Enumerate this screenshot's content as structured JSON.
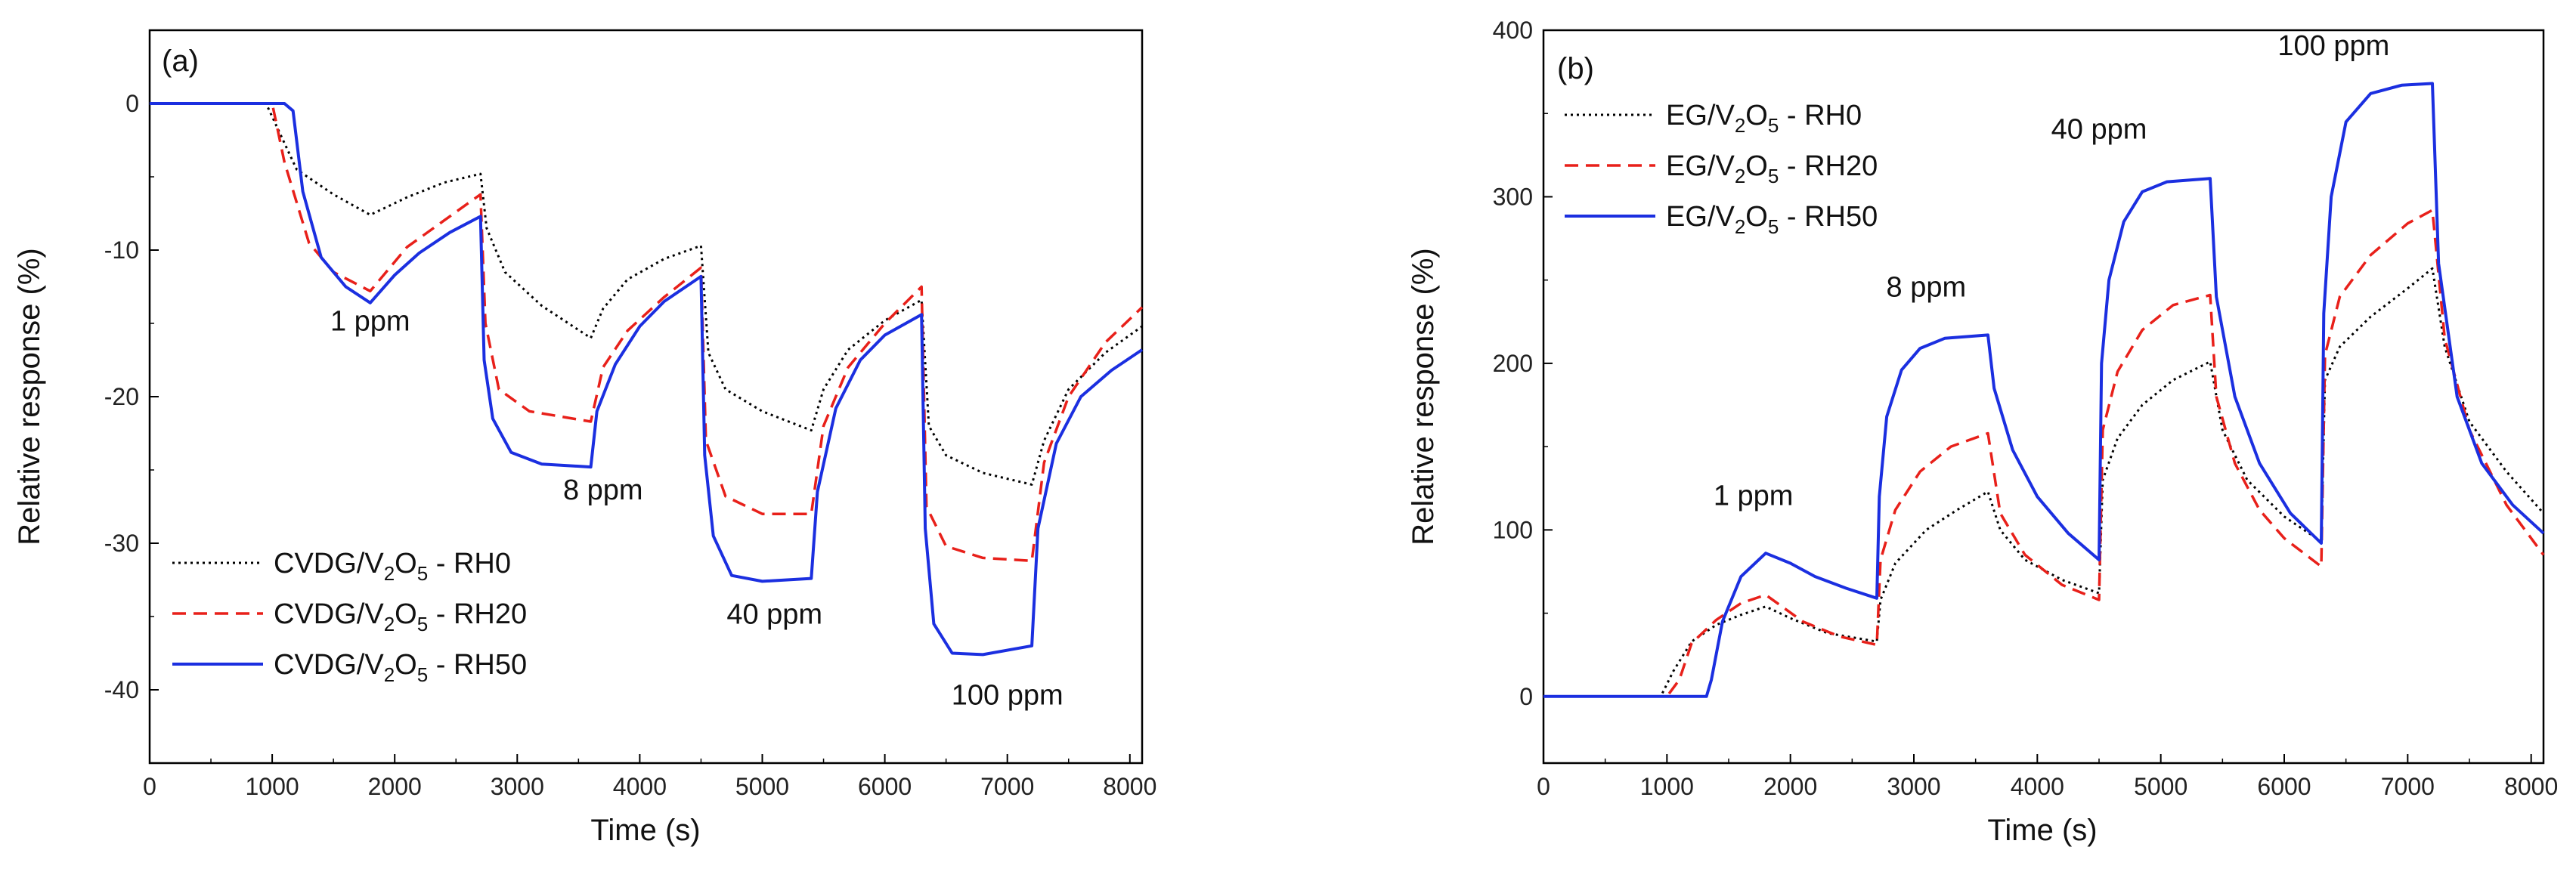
{
  "chart_data": [
    {
      "type": "line",
      "panel_label": "(a)",
      "xlabel": "Time (s)",
      "ylabel": "Relative response (%)",
      "xlim": [
        0,
        8100
      ],
      "ylim": [
        -45,
        5
      ],
      "xticks": [
        0,
        1000,
        2000,
        3000,
        4000,
        5000,
        6000,
        7000,
        8000
      ],
      "yticks": [
        0,
        -10,
        -20,
        -30,
        -40
      ],
      "legend_position": "bottom-left",
      "annotations": [
        {
          "text": "1 ppm",
          "x": 1800,
          "y": -15.5
        },
        {
          "text": "8 ppm",
          "x": 3700,
          "y": -27.0
        },
        {
          "text": "40 ppm",
          "x": 5100,
          "y": -35.5
        },
        {
          "text": "100 ppm",
          "x": 7000,
          "y": -41.0
        }
      ],
      "series": [
        {
          "name": "CVDG/V2O5 - RH0",
          "legend": [
            "CVDG/V",
            "2",
            "O",
            "5",
            " - RH0"
          ],
          "style": "dotted",
          "color": "#000000",
          "x": [
            0,
            950,
            1200,
            1500,
            1800,
            2100,
            2400,
            2700,
            2750,
            2900,
            3200,
            3600,
            3700,
            3900,
            4200,
            4500,
            4560,
            4700,
            5000,
            5400,
            5500,
            5700,
            6000,
            6300,
            6360,
            6500,
            6800,
            7200,
            7300,
            7500,
            7800,
            8100
          ],
          "y": [
            0,
            0,
            -4.5,
            -6.2,
            -7.6,
            -6.4,
            -5.4,
            -4.8,
            -8.5,
            -11.5,
            -13.8,
            -16.0,
            -14.0,
            -12.0,
            -10.6,
            -9.7,
            -17.0,
            -19.5,
            -21.0,
            -22.3,
            -19.5,
            -16.8,
            -14.8,
            -13.4,
            -22.0,
            -24.0,
            -25.2,
            -26.0,
            -23.0,
            -19.5,
            -17.0,
            -15.2
          ]
        },
        {
          "name": "CVDG/V2O5 - RH20",
          "legend": [
            "CVDG/V",
            "2",
            "O",
            "5",
            " - RH20"
          ],
          "style": "dashed",
          "color": "#e8201a",
          "x": [
            0,
            1000,
            1100,
            1300,
            1500,
            1800,
            2100,
            2400,
            2700,
            2740,
            2850,
            3100,
            3600,
            3700,
            3900,
            4200,
            4500,
            4540,
            4700,
            5000,
            5400,
            5500,
            5700,
            6000,
            6300,
            6340,
            6500,
            6800,
            7200,
            7300,
            7500,
            7800,
            8100
          ],
          "y": [
            0,
            0,
            -4.0,
            -9.5,
            -11.5,
            -12.8,
            -9.8,
            -8.0,
            -6.2,
            -15.0,
            -19.5,
            -21.0,
            -21.7,
            -18.0,
            -15.5,
            -13.2,
            -11.2,
            -23.0,
            -26.8,
            -28.0,
            -28.0,
            -22.0,
            -18.0,
            -15.0,
            -12.5,
            -27.5,
            -30.2,
            -31.0,
            -31.2,
            -24.5,
            -20.0,
            -16.3,
            -13.9
          ]
        },
        {
          "name": "CVDG/V2O5 - RH50",
          "legend": [
            "CVDG/V",
            "2",
            "O",
            "5",
            " - RH50"
          ],
          "style": "solid",
          "color": "#1b2fe0",
          "x": [
            0,
            1100,
            1170,
            1250,
            1400,
            1600,
            1800,
            2000,
            2200,
            2450,
            2700,
            2730,
            2800,
            2950,
            3200,
            3600,
            3650,
            3800,
            4000,
            4200,
            4500,
            4530,
            4600,
            4750,
            5000,
            5400,
            5450,
            5600,
            5800,
            6000,
            6300,
            6330,
            6400,
            6550,
            6800,
            7200,
            7250,
            7400,
            7600,
            7850,
            8100
          ],
          "y": [
            0,
            0,
            -0.5,
            -6.0,
            -10.5,
            -12.5,
            -13.6,
            -11.7,
            -10.2,
            -8.8,
            -7.7,
            -17.5,
            -21.5,
            -23.8,
            -24.6,
            -24.8,
            -21.0,
            -17.8,
            -15.2,
            -13.5,
            -11.8,
            -24.0,
            -29.5,
            -32.2,
            -32.6,
            -32.4,
            -26.5,
            -20.8,
            -17.5,
            -15.8,
            -14.4,
            -29.0,
            -35.5,
            -37.5,
            -37.6,
            -37.0,
            -29.0,
            -23.2,
            -20.0,
            -18.2,
            -16.8
          ]
        }
      ]
    },
    {
      "type": "line",
      "panel_label": "(b)",
      "xlabel": "Time (s)",
      "ylabel": "Relative response (%)",
      "xlim": [
        0,
        8100
      ],
      "ylim": [
        -40,
        400
      ],
      "xticks": [
        0,
        1000,
        2000,
        3000,
        4000,
        5000,
        6000,
        7000,
        8000
      ],
      "yticks": [
        0,
        100,
        200,
        300,
        400
      ],
      "legend_position": "top-left",
      "annotations": [
        {
          "text": "1 ppm",
          "x": 1700,
          "y": 115
        },
        {
          "text": "8 ppm",
          "x": 3100,
          "y": 240
        },
        {
          "text": "40 ppm",
          "x": 4500,
          "y": 335
        },
        {
          "text": "100 ppm",
          "x": 6400,
          "y": 385
        }
      ],
      "series": [
        {
          "name": "EG/V2O5 - RH0",
          "legend": [
            "EG/V",
            "2",
            "O",
            "5",
            " - RH0"
          ],
          "style": "dotted",
          "color": "#000000",
          "x": [
            0,
            950,
            1050,
            1200,
            1400,
            1600,
            1800,
            2000,
            2300,
            2700,
            2730,
            2850,
            3100,
            3350,
            3600,
            3700,
            3900,
            4200,
            4500,
            4530,
            4650,
            4850,
            5100,
            5400,
            5500,
            5700,
            6000,
            6300,
            6330,
            6450,
            6700,
            7000,
            7200,
            7300,
            7500,
            7800,
            8100
          ],
          "y": [
            0,
            0,
            15,
            33,
            43,
            49,
            54,
            47,
            38,
            33,
            58,
            80,
            100,
            112,
            123,
            100,
            82,
            70,
            62,
            130,
            155,
            175,
            190,
            201,
            160,
            130,
            108,
            93,
            190,
            210,
            228,
            245,
            257,
            210,
            165,
            135,
            110
          ]
        },
        {
          "name": "EG/V2O5 - RH20",
          "legend": [
            "EG/V",
            "2",
            "O",
            "5",
            " - RH20"
          ],
          "style": "dashed",
          "color": "#e8201a",
          "x": [
            0,
            1000,
            1100,
            1200,
            1400,
            1600,
            1800,
            2100,
            2400,
            2700,
            2730,
            2850,
            3050,
            3300,
            3600,
            3700,
            3900,
            4200,
            4500,
            4530,
            4650,
            4850,
            5100,
            5400,
            5450,
            5600,
            5800,
            6000,
            6300,
            6330,
            6450,
            6700,
            7000,
            7200,
            7300,
            7500,
            7800,
            8100
          ],
          "y": [
            0,
            0,
            10,
            32,
            46,
            56,
            61,
            45,
            36,
            31,
            82,
            112,
            135,
            150,
            158,
            110,
            85,
            67,
            58,
            160,
            195,
            220,
            235,
            241,
            180,
            140,
            112,
            95,
            78,
            205,
            240,
            265,
            284,
            292,
            215,
            160,
            115,
            85
          ]
        },
        {
          "name": "EG/V2O5 - RH50",
          "legend": [
            "EG/V",
            "2",
            "O",
            "5",
            " - RH50"
          ],
          "style": "solid",
          "color": "#1b2fe0",
          "x": [
            0,
            1320,
            1360,
            1450,
            1600,
            1800,
            2000,
            2200,
            2450,
            2700,
            2720,
            2780,
            2900,
            3050,
            3250,
            3600,
            3650,
            3800,
            4000,
            4250,
            4500,
            4520,
            4580,
            4700,
            4850,
            5050,
            5400,
            5450,
            5600,
            5800,
            6050,
            6300,
            6320,
            6380,
            6500,
            6700,
            6950,
            7200,
            7250,
            7400,
            7600,
            7850,
            8100
          ],
          "y": [
            0,
            0,
            10,
            45,
            72,
            86,
            80,
            72,
            65,
            59,
            120,
            168,
            196,
            209,
            215,
            217,
            185,
            148,
            120,
            98,
            82,
            200,
            250,
            285,
            303,
            309,
            311,
            240,
            180,
            140,
            110,
            92,
            230,
            300,
            345,
            362,
            367,
            368,
            260,
            180,
            140,
            115,
            98
          ]
        }
      ]
    }
  ]
}
